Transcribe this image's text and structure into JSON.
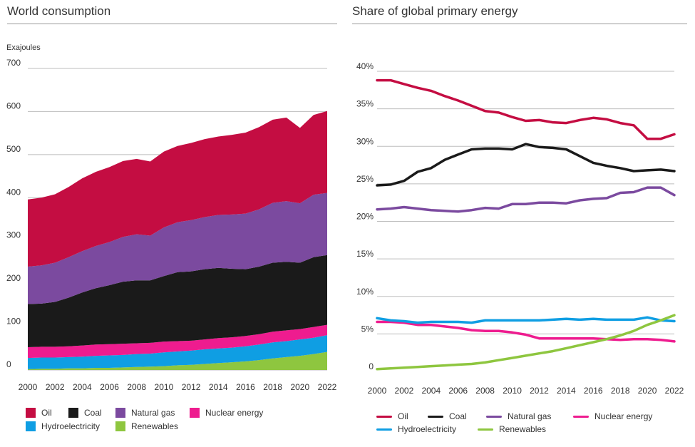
{
  "charts": {
    "left_title": "World consumption",
    "right_title": "Share of global primary energy"
  },
  "colors": {
    "oil": "#c40d42",
    "coal": "#1a1a1a",
    "gas": "#7b4a9f",
    "nuclear": "#ee1c8f",
    "hydro": "#0f9ee3",
    "renewables": "#8ec63f",
    "grid": "#bdbdbd"
  },
  "chart_data": [
    {
      "type": "area",
      "title": "World consumption",
      "ylabel": "Exajoules",
      "xlabel": "",
      "stacked": true,
      "ylim": [
        0,
        700
      ],
      "yticks": [
        "0",
        "100",
        "200",
        "300",
        "400",
        "500",
        "600",
        "700"
      ],
      "xticks": [
        "2000",
        "2002",
        "2004",
        "2006",
        "2008",
        "2010",
        "2012",
        "2014",
        "2016",
        "2018",
        "2020",
        "2022"
      ],
      "x": [
        2000,
        2001,
        2002,
        2003,
        2004,
        2005,
        2006,
        2007,
        2008,
        2009,
        2010,
        2011,
        2012,
        2013,
        2014,
        2015,
        2016,
        2017,
        2018,
        2019,
        2020,
        2021,
        2022
      ],
      "grid": true,
      "legend_position": "bottom",
      "series": [
        {
          "name": "Renewables",
          "color_key": "renewables",
          "values": [
            2,
            3,
            3,
            4,
            4,
            5,
            5,
            6,
            7,
            8,
            9,
            11,
            12,
            14,
            16,
            18,
            20,
            23,
            27,
            30,
            33,
            37,
            42
          ]
        },
        {
          "name": "Hydroelectricity",
          "color_key": "hydro",
          "values": [
            26,
            26,
            26,
            26,
            27,
            28,
            29,
            29,
            30,
            30,
            32,
            32,
            33,
            34,
            34,
            34,
            35,
            36,
            37,
            37,
            38,
            38,
            39
          ]
        },
        {
          "name": "Nuclear energy",
          "color_key": "nuclear",
          "values": [
            25,
            25,
            25,
            25,
            26,
            26,
            26,
            26,
            25,
            25,
            25,
            24,
            23,
            23,
            24,
            24,
            24,
            24,
            25,
            25,
            24,
            25,
            24
          ]
        },
        {
          "name": "Coal",
          "color_key": "coal",
          "values": [
            100,
            100,
            104,
            113,
            123,
            131,
            137,
            144,
            146,
            145,
            152,
            160,
            161,
            163,
            163,
            159,
            155,
            157,
            160,
            159,
            154,
            162,
            162
          ]
        },
        {
          "name": "Natural gas",
          "color_key": "gas",
          "values": [
            87,
            89,
            91,
            94,
            96,
            98,
            100,
            104,
            107,
            104,
            113,
            116,
            119,
            121,
            123,
            126,
            129,
            133,
            139,
            141,
            138,
            145,
            144
          ]
        },
        {
          "name": "Oil",
          "color_key": "oil",
          "values": [
            156,
            157,
            159,
            163,
            169,
            172,
            174,
            176,
            175,
            172,
            176,
            177,
            179,
            181,
            182,
            185,
            188,
            191,
            193,
            194,
            175,
            185,
            190
          ]
        }
      ]
    },
    {
      "type": "line",
      "title": "Share of global primary energy",
      "xlabel": "",
      "ylabel": "",
      "ylim": [
        0,
        40
      ],
      "yticks": [
        "0",
        "5%",
        "10%",
        "15%",
        "20%",
        "25%",
        "30%",
        "35%",
        "40%"
      ],
      "xticks": [
        "2000",
        "2002",
        "2004",
        "2006",
        "2008",
        "2010",
        "2012",
        "2014",
        "2016",
        "2018",
        "2020",
        "2022"
      ],
      "x": [
        2000,
        2001,
        2002,
        2003,
        2004,
        2005,
        2006,
        2007,
        2008,
        2009,
        2010,
        2011,
        2012,
        2013,
        2014,
        2015,
        2016,
        2017,
        2018,
        2019,
        2020,
        2021,
        2022
      ],
      "grid": true,
      "legend_position": "bottom",
      "series": [
        {
          "name": "Oil",
          "color_key": "oil",
          "values": [
            38.8,
            38.8,
            38.3,
            37.8,
            37.4,
            36.7,
            36.1,
            35.4,
            34.7,
            34.5,
            33.9,
            33.4,
            33.5,
            33.2,
            33.1,
            33.5,
            33.8,
            33.6,
            33.1,
            32.8,
            31.0,
            31.0,
            31.6
          ]
        },
        {
          "name": "Coal",
          "color_key": "coal",
          "values": [
            24.8,
            24.9,
            25.4,
            26.6,
            27.1,
            28.2,
            28.9,
            29.6,
            29.7,
            29.7,
            29.6,
            30.3,
            29.9,
            29.8,
            29.6,
            28.7,
            27.8,
            27.4,
            27.1,
            26.7,
            26.8,
            26.9,
            26.7
          ]
        },
        {
          "name": "Natural gas",
          "color_key": "gas",
          "values": [
            21.6,
            21.7,
            21.9,
            21.7,
            21.5,
            21.4,
            21.3,
            21.5,
            21.8,
            21.7,
            22.3,
            22.3,
            22.5,
            22.5,
            22.4,
            22.8,
            23.0,
            23.1,
            23.8,
            23.9,
            24.5,
            24.5,
            23.5
          ]
        },
        {
          "name": "Nuclear energy",
          "color_key": "nuclear",
          "values": [
            6.6,
            6.6,
            6.5,
            6.2,
            6.2,
            6.0,
            5.8,
            5.5,
            5.4,
            5.4,
            5.2,
            4.9,
            4.4,
            4.4,
            4.4,
            4.4,
            4.4,
            4.3,
            4.2,
            4.3,
            4.3,
            4.2,
            4.0
          ]
        },
        {
          "name": "Hydroelectricity",
          "color_key": "hydro",
          "values": [
            7.1,
            6.8,
            6.7,
            6.5,
            6.6,
            6.6,
            6.6,
            6.5,
            6.8,
            6.8,
            6.8,
            6.8,
            6.8,
            6.9,
            7.0,
            6.9,
            7.0,
            6.9,
            6.9,
            6.9,
            7.2,
            6.8,
            6.7
          ]
        },
        {
          "name": "Renewables",
          "color_key": "renewables",
          "values": [
            0.3,
            0.4,
            0.5,
            0.6,
            0.7,
            0.8,
            0.9,
            1.0,
            1.2,
            1.5,
            1.8,
            2.1,
            2.4,
            2.7,
            3.1,
            3.5,
            3.9,
            4.3,
            4.8,
            5.4,
            6.2,
            6.8,
            7.5
          ]
        }
      ]
    }
  ],
  "legends": {
    "left": [
      "Oil",
      "Coal",
      "Natural gas",
      "Nuclear energy",
      "Hydroelectricity",
      "Renewables"
    ],
    "right": [
      "Oil",
      "Coal",
      "Natural gas",
      "Nuclear energy",
      "Hydroelectricity",
      "Renewables"
    ]
  }
}
